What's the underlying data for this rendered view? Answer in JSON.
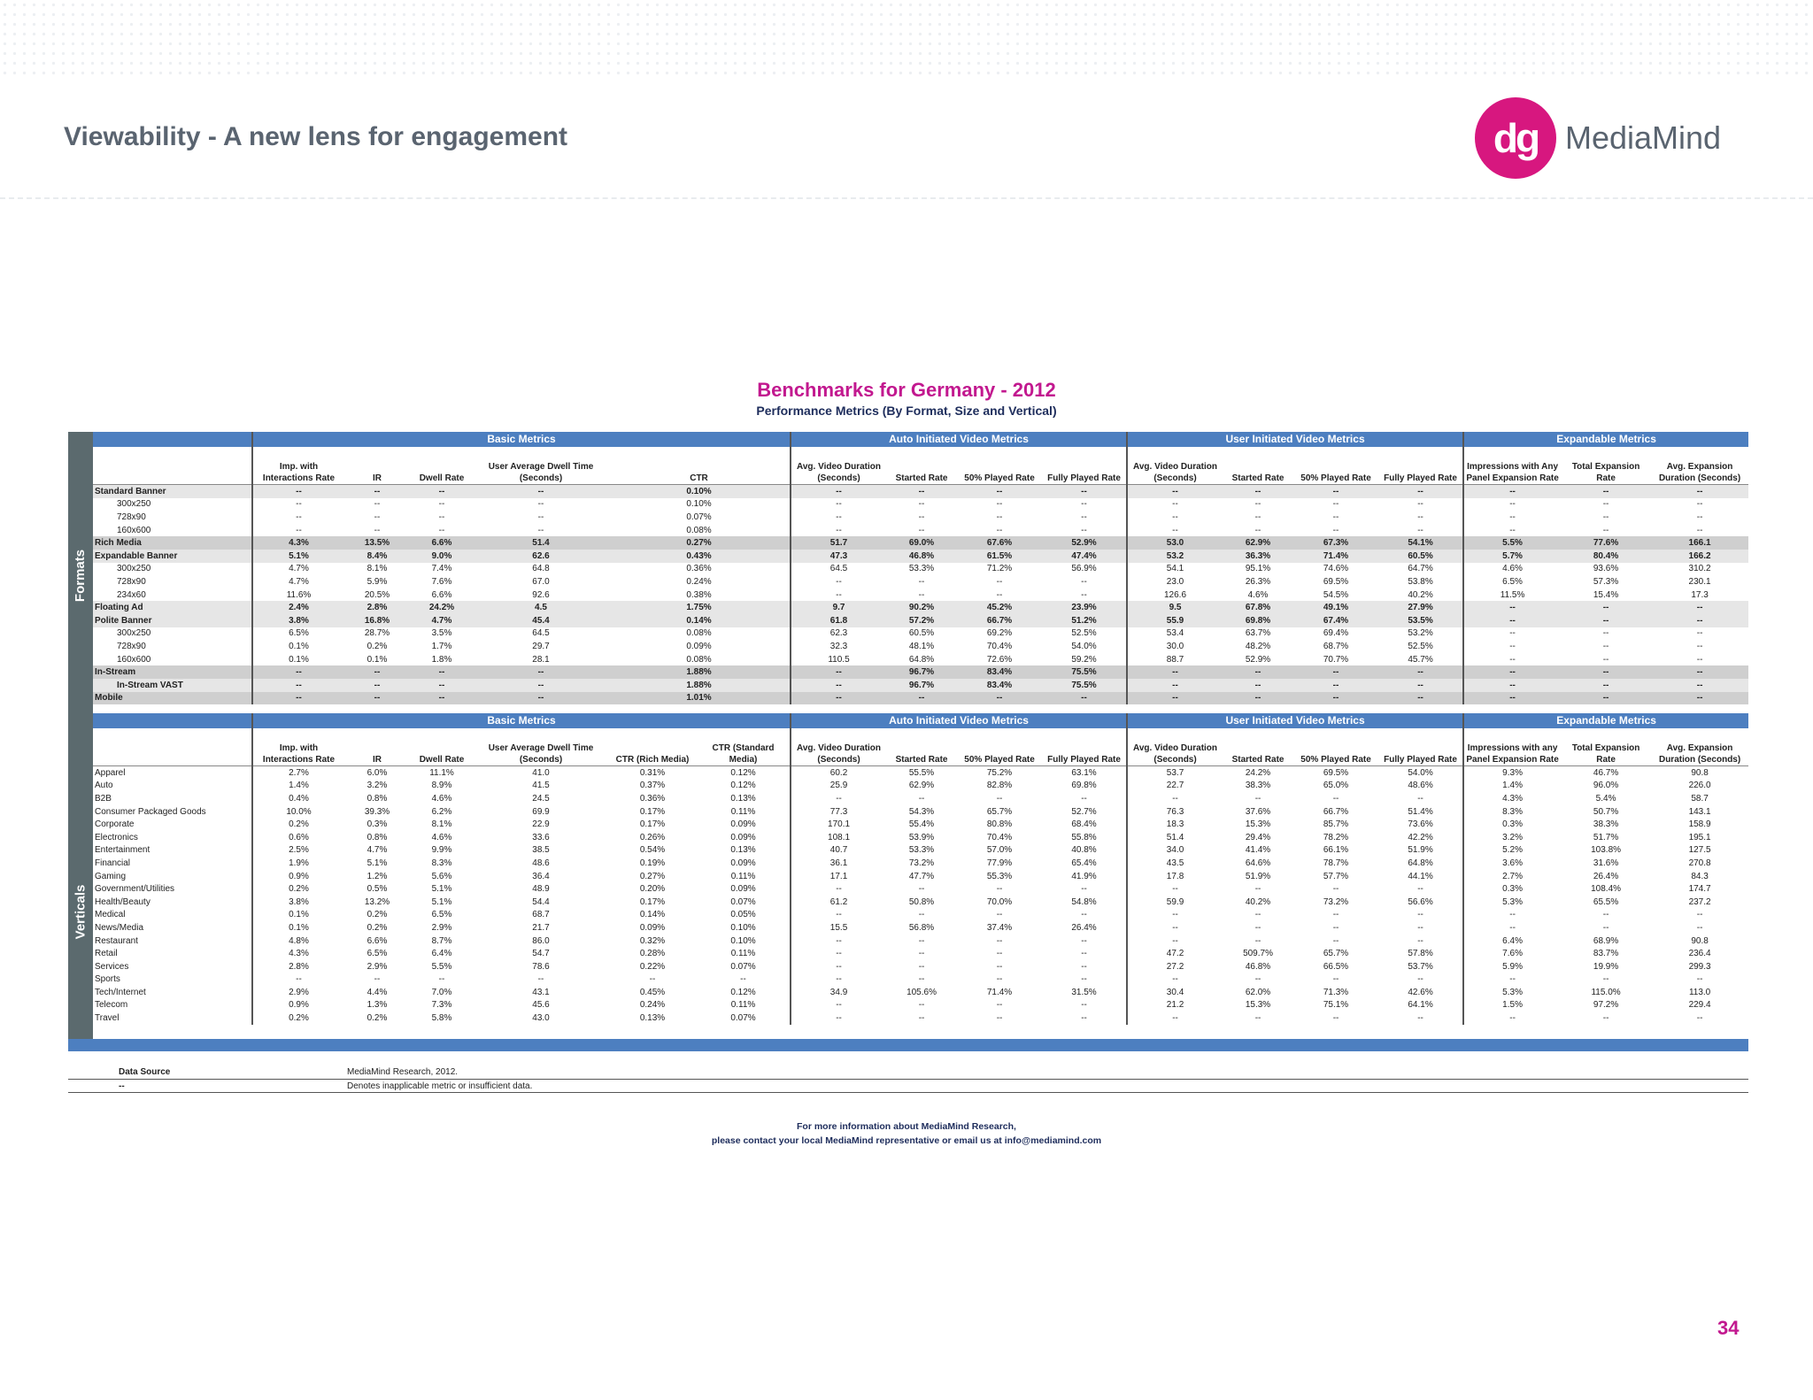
{
  "slide": {
    "title": "Viewability - A new lens for engagement",
    "logo_mark": "dg",
    "logo_text": "MediaMind",
    "page_number": "34"
  },
  "benchmark": {
    "title": "Benchmarks for Germany - 2012",
    "subtitle": "Performance Metrics  (By Format, Size and Vertical)"
  },
  "side_labels": {
    "formats": "Formats",
    "verticals": "Verticals"
  },
  "groups": {
    "basic": "Basic Metrics",
    "auto": "Auto Initiated Video Metrics",
    "user": "User Initiated Video Metrics",
    "expandable": "Expandable Metrics"
  },
  "formats_headers": [
    "Imp. with Interactions Rate",
    "IR",
    "Dwell Rate",
    "User Average Dwell Time (Seconds)",
    "CTR",
    "Avg. Video Duration (Seconds)",
    "Started Rate",
    "50% Played Rate",
    "Fully Played Rate",
    "Avg. Video Duration (Seconds)",
    "Started Rate",
    "50% Played Rate",
    "Fully Played Rate",
    "Impressions with Any Panel Expansion Rate",
    "Total Expansion Rate",
    "Avg. Expansion Duration (Seconds)"
  ],
  "formats_rows": [
    {
      "label": "Standard Banner",
      "bold": true,
      "indent": false,
      "shade": "g",
      "v": [
        "--",
        "--",
        "--",
        "--",
        "0.10%",
        "--",
        "--",
        "--",
        "--",
        "--",
        "--",
        "--",
        "--",
        "--",
        "--",
        "--"
      ]
    },
    {
      "label": "300x250",
      "bold": false,
      "indent": true,
      "shade": "",
      "v": [
        "--",
        "--",
        "--",
        "--",
        "0.10%",
        "--",
        "--",
        "--",
        "--",
        "--",
        "--",
        "--",
        "--",
        "--",
        "--",
        "--"
      ]
    },
    {
      "label": "728x90",
      "bold": false,
      "indent": true,
      "shade": "",
      "v": [
        "--",
        "--",
        "--",
        "--",
        "0.07%",
        "--",
        "--",
        "--",
        "--",
        "--",
        "--",
        "--",
        "--",
        "--",
        "--",
        "--"
      ]
    },
    {
      "label": "160x600",
      "bold": false,
      "indent": true,
      "shade": "",
      "v": [
        "--",
        "--",
        "--",
        "--",
        "0.08%",
        "--",
        "--",
        "--",
        "--",
        "--",
        "--",
        "--",
        "--",
        "--",
        "--",
        "--"
      ]
    },
    {
      "label": "Rich Media",
      "bold": true,
      "indent": false,
      "shade": "dg",
      "v": [
        "4.3%",
        "13.5%",
        "6.6%",
        "51.4",
        "0.27%",
        "51.7",
        "69.0%",
        "67.6%",
        "52.9%",
        "53.0",
        "62.9%",
        "67.3%",
        "54.1%",
        "5.5%",
        "77.6%",
        "166.1"
      ]
    },
    {
      "label": "Expandable Banner",
      "bold": true,
      "indent": false,
      "shade": "g",
      "v": [
        "5.1%",
        "8.4%",
        "9.0%",
        "62.6",
        "0.43%",
        "47.3",
        "46.8%",
        "61.5%",
        "47.4%",
        "53.2",
        "36.3%",
        "71.4%",
        "60.5%",
        "5.7%",
        "80.4%",
        "166.2"
      ]
    },
    {
      "label": "300x250",
      "bold": false,
      "indent": true,
      "shade": "",
      "v": [
        "4.7%",
        "8.1%",
        "7.4%",
        "64.8",
        "0.36%",
        "64.5",
        "53.3%",
        "71.2%",
        "56.9%",
        "54.1",
        "95.1%",
        "74.6%",
        "64.7%",
        "4.6%",
        "93.6%",
        "310.2"
      ]
    },
    {
      "label": "728x90",
      "bold": false,
      "indent": true,
      "shade": "",
      "v": [
        "4.7%",
        "5.9%",
        "7.6%",
        "67.0",
        "0.24%",
        "--",
        "--",
        "--",
        "--",
        "23.0",
        "26.3%",
        "69.5%",
        "53.8%",
        "6.5%",
        "57.3%",
        "230.1"
      ]
    },
    {
      "label": "234x60",
      "bold": false,
      "indent": true,
      "shade": "",
      "v": [
        "11.6%",
        "20.5%",
        "6.6%",
        "92.6",
        "0.38%",
        "--",
        "--",
        "--",
        "--",
        "126.6",
        "4.6%",
        "54.5%",
        "40.2%",
        "11.5%",
        "15.4%",
        "17.3"
      ]
    },
    {
      "label": "Floating Ad",
      "bold": true,
      "indent": false,
      "shade": "g",
      "v": [
        "2.4%",
        "2.8%",
        "24.2%",
        "4.5",
        "1.75%",
        "9.7",
        "90.2%",
        "45.2%",
        "23.9%",
        "9.5",
        "67.8%",
        "49.1%",
        "27.9%",
        "--",
        "--",
        "--"
      ]
    },
    {
      "label": "Polite Banner",
      "bold": true,
      "indent": false,
      "shade": "g",
      "v": [
        "3.8%",
        "16.8%",
        "4.7%",
        "45.4",
        "0.14%",
        "61.8",
        "57.2%",
        "66.7%",
        "51.2%",
        "55.9",
        "69.8%",
        "67.4%",
        "53.5%",
        "--",
        "--",
        "--"
      ]
    },
    {
      "label": "300x250",
      "bold": false,
      "indent": true,
      "shade": "",
      "v": [
        "6.5%",
        "28.7%",
        "3.5%",
        "64.5",
        "0.08%",
        "62.3",
        "60.5%",
        "69.2%",
        "52.5%",
        "53.4",
        "63.7%",
        "69.4%",
        "53.2%",
        "--",
        "--",
        "--"
      ]
    },
    {
      "label": "728x90",
      "bold": false,
      "indent": true,
      "shade": "",
      "v": [
        "0.1%",
        "0.2%",
        "1.7%",
        "29.7",
        "0.09%",
        "32.3",
        "48.1%",
        "70.4%",
        "54.0%",
        "30.0",
        "48.2%",
        "68.7%",
        "52.5%",
        "--",
        "--",
        "--"
      ]
    },
    {
      "label": "160x600",
      "bold": false,
      "indent": true,
      "shade": "",
      "v": [
        "0.1%",
        "0.1%",
        "1.8%",
        "28.1",
        "0.08%",
        "110.5",
        "64.8%",
        "72.6%",
        "59.2%",
        "88.7",
        "52.9%",
        "70.7%",
        "45.7%",
        "--",
        "--",
        "--"
      ]
    },
    {
      "label": "In-Stream",
      "bold": true,
      "indent": false,
      "shade": "dg",
      "v": [
        "--",
        "--",
        "--",
        "--",
        "1.88%",
        "--",
        "96.7%",
        "83.4%",
        "75.5%",
        "--",
        "--",
        "--",
        "--",
        "--",
        "--",
        "--"
      ]
    },
    {
      "label": "In-Stream VAST",
      "bold": true,
      "indent": true,
      "shade": "g",
      "v": [
        "--",
        "--",
        "--",
        "--",
        "1.88%",
        "--",
        "96.7%",
        "83.4%",
        "75.5%",
        "--",
        "--",
        "--",
        "--",
        "--",
        "--",
        "--"
      ]
    },
    {
      "label": "Mobile",
      "bold": true,
      "indent": false,
      "shade": "dg",
      "v": [
        "--",
        "--",
        "--",
        "--",
        "1.01%",
        "--",
        "--",
        "--",
        "--",
        "--",
        "--",
        "--",
        "--",
        "--",
        "--",
        "--"
      ]
    }
  ],
  "verticals_headers": [
    "Imp. with Interactions Rate",
    "IR",
    "Dwell Rate",
    "User Average Dwell Time (Seconds)",
    "CTR (Rich Media)",
    "CTR (Standard Media)",
    "Avg. Video Duration (Seconds)",
    "Started Rate",
    "50% Played Rate",
    "Fully Played Rate",
    "Avg. Video Duration (Seconds)",
    "Started Rate",
    "50% Played Rate",
    "Fully Played Rate",
    "Impressions with any Panel Expansion Rate",
    "Total Expansion Rate",
    "Avg. Expansion Duration (Seconds)"
  ],
  "verticals_rows": [
    {
      "label": "Apparel",
      "v": [
        "2.7%",
        "6.0%",
        "11.1%",
        "41.0",
        "0.31%",
        "0.12%",
        "60.2",
        "55.5%",
        "75.2%",
        "63.1%",
        "53.7",
        "24.2%",
        "69.5%",
        "54.0%",
        "9.3%",
        "46.7%",
        "90.8"
      ]
    },
    {
      "label": "Auto",
      "v": [
        "1.4%",
        "3.2%",
        "8.9%",
        "41.5",
        "0.37%",
        "0.12%",
        "25.9",
        "62.9%",
        "82.8%",
        "69.8%",
        "22.7",
        "38.3%",
        "65.0%",
        "48.6%",
        "1.4%",
        "96.0%",
        "226.0"
      ]
    },
    {
      "label": "B2B",
      "v": [
        "0.4%",
        "0.8%",
        "4.6%",
        "24.5",
        "0.36%",
        "0.13%",
        "--",
        "--",
        "--",
        "--",
        "--",
        "--",
        "--",
        "--",
        "4.3%",
        "5.4%",
        "58.7"
      ]
    },
    {
      "label": "Consumer Packaged Goods",
      "v": [
        "10.0%",
        "39.3%",
        "6.2%",
        "69.9",
        "0.17%",
        "0.11%",
        "77.3",
        "54.3%",
        "65.7%",
        "52.7%",
        "76.3",
        "37.6%",
        "66.7%",
        "51.4%",
        "8.3%",
        "50.7%",
        "143.1"
      ]
    },
    {
      "label": "Corporate",
      "v": [
        "0.2%",
        "0.3%",
        "8.1%",
        "22.9",
        "0.17%",
        "0.09%",
        "170.1",
        "55.4%",
        "80.8%",
        "68.4%",
        "18.3",
        "15.3%",
        "85.7%",
        "73.6%",
        "0.3%",
        "38.3%",
        "158.9"
      ]
    },
    {
      "label": "Electronics",
      "v": [
        "0.6%",
        "0.8%",
        "4.6%",
        "33.6",
        "0.26%",
        "0.09%",
        "108.1",
        "53.9%",
        "70.4%",
        "55.8%",
        "51.4",
        "29.4%",
        "78.2%",
        "42.2%",
        "3.2%",
        "51.7%",
        "195.1"
      ]
    },
    {
      "label": "Entertainment",
      "v": [
        "2.5%",
        "4.7%",
        "9.9%",
        "38.5",
        "0.54%",
        "0.13%",
        "40.7",
        "53.3%",
        "57.0%",
        "40.8%",
        "34.0",
        "41.4%",
        "66.1%",
        "51.9%",
        "5.2%",
        "103.8%",
        "127.5"
      ]
    },
    {
      "label": "Financial",
      "v": [
        "1.9%",
        "5.1%",
        "8.3%",
        "48.6",
        "0.19%",
        "0.09%",
        "36.1",
        "73.2%",
        "77.9%",
        "65.4%",
        "43.5",
        "64.6%",
        "78.7%",
        "64.8%",
        "3.6%",
        "31.6%",
        "270.8"
      ]
    },
    {
      "label": "Gaming",
      "v": [
        "0.9%",
        "1.2%",
        "5.6%",
        "36.4",
        "0.27%",
        "0.11%",
        "17.1",
        "47.7%",
        "55.3%",
        "41.9%",
        "17.8",
        "51.9%",
        "57.7%",
        "44.1%",
        "2.7%",
        "26.4%",
        "84.3"
      ]
    },
    {
      "label": "Government/Utilities",
      "v": [
        "0.2%",
        "0.5%",
        "5.1%",
        "48.9",
        "0.20%",
        "0.09%",
        "--",
        "--",
        "--",
        "--",
        "--",
        "--",
        "--",
        "--",
        "0.3%",
        "108.4%",
        "174.7"
      ]
    },
    {
      "label": "Health/Beauty",
      "v": [
        "3.8%",
        "13.2%",
        "5.1%",
        "54.4",
        "0.17%",
        "0.07%",
        "61.2",
        "50.8%",
        "70.0%",
        "54.8%",
        "59.9",
        "40.2%",
        "73.2%",
        "56.6%",
        "5.3%",
        "65.5%",
        "237.2"
      ]
    },
    {
      "label": "Medical",
      "v": [
        "0.1%",
        "0.2%",
        "6.5%",
        "68.7",
        "0.14%",
        "0.05%",
        "--",
        "--",
        "--",
        "--",
        "--",
        "--",
        "--",
        "--",
        "--",
        "--",
        "--"
      ]
    },
    {
      "label": "News/Media",
      "v": [
        "0.1%",
        "0.2%",
        "2.9%",
        "21.7",
        "0.09%",
        "0.10%",
        "15.5",
        "56.8%",
        "37.4%",
        "26.4%",
        "--",
        "--",
        "--",
        "--",
        "--",
        "--",
        "--"
      ]
    },
    {
      "label": "Restaurant",
      "v": [
        "4.8%",
        "6.6%",
        "8.7%",
        "86.0",
        "0.32%",
        "0.10%",
        "--",
        "--",
        "--",
        "--",
        "--",
        "--",
        "--",
        "--",
        "6.4%",
        "68.9%",
        "90.8"
      ]
    },
    {
      "label": "Retail",
      "v": [
        "4.3%",
        "6.5%",
        "6.4%",
        "54.7",
        "0.28%",
        "0.11%",
        "--",
        "--",
        "--",
        "--",
        "47.2",
        "509.7%",
        "65.7%",
        "57.8%",
        "7.6%",
        "83.7%",
        "236.4"
      ]
    },
    {
      "label": "Services",
      "v": [
        "2.8%",
        "2.9%",
        "5.5%",
        "78.6",
        "0.22%",
        "0.07%",
        "--",
        "--",
        "--",
        "--",
        "27.2",
        "46.8%",
        "66.5%",
        "53.7%",
        "5.9%",
        "19.9%",
        "299.3"
      ]
    },
    {
      "label": "Sports",
      "v": [
        "--",
        "--",
        "--",
        "--",
        "--",
        "--",
        "--",
        "--",
        "--",
        "--",
        "--",
        "--",
        "--",
        "--",
        "--",
        "--",
        "--"
      ]
    },
    {
      "label": "Tech/Internet",
      "v": [
        "2.9%",
        "4.4%",
        "7.0%",
        "43.1",
        "0.45%",
        "0.12%",
        "34.9",
        "105.6%",
        "71.4%",
        "31.5%",
        "30.4",
        "62.0%",
        "71.3%",
        "42.6%",
        "5.3%",
        "115.0%",
        "113.0"
      ]
    },
    {
      "label": "Telecom",
      "v": [
        "0.9%",
        "1.3%",
        "7.3%",
        "45.6",
        "0.24%",
        "0.11%",
        "--",
        "--",
        "--",
        "--",
        "21.2",
        "15.3%",
        "75.1%",
        "64.1%",
        "1.5%",
        "97.2%",
        "229.4"
      ]
    },
    {
      "label": "Travel",
      "v": [
        "0.2%",
        "0.2%",
        "5.8%",
        "43.0",
        "0.13%",
        "0.07%",
        "--",
        "--",
        "--",
        "--",
        "--",
        "--",
        "--",
        "--",
        "--",
        "--",
        "--"
      ]
    }
  ],
  "data_source": {
    "label": "Data Source",
    "value": "MediaMind Research, 2012.",
    "dash_label": "--",
    "dash_value": "Denotes inapplicable metric or insufficient data."
  },
  "contact": {
    "line1": "For more information about MediaMind Research,",
    "line2": "please contact your local MediaMind representative or email us at info@mediamind.com"
  }
}
